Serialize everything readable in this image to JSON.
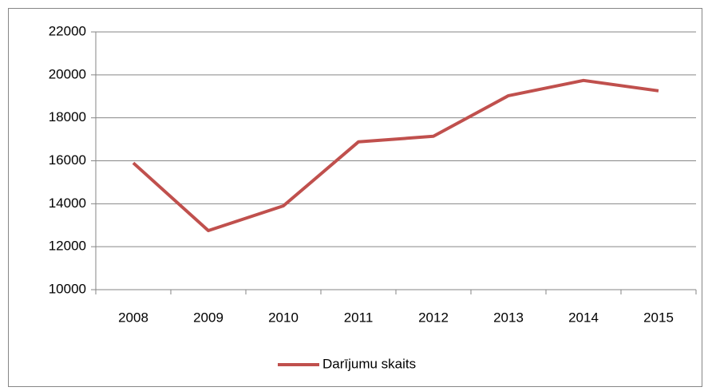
{
  "chart_data": {
    "type": "line",
    "categories": [
      "2008",
      "2009",
      "2010",
      "2011",
      "2012",
      "2013",
      "2014",
      "2015"
    ],
    "series": [
      {
        "name": "Darījumu skaits",
        "color": "#c0504d",
        "values": [
          15900,
          12750,
          13900,
          16880,
          17140,
          19030,
          19740,
          19260
        ]
      }
    ],
    "ylim": [
      10000,
      22000
    ],
    "yticks": [
      10000,
      12000,
      14000,
      16000,
      18000,
      20000,
      22000
    ],
    "grid": true,
    "legend": "bottom"
  }
}
